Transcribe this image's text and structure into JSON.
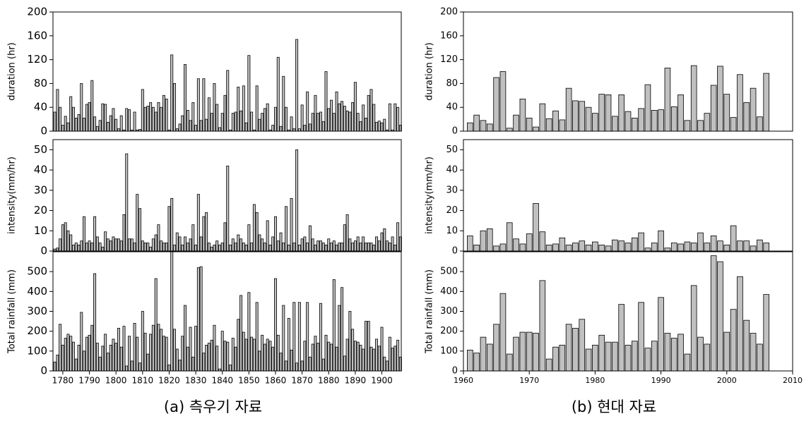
{
  "chart_data": [
    {
      "type": "bar",
      "ylabel": "duration (hr)",
      "color": "#c0c0c0",
      "x": [
        1777,
        1778,
        1779,
        1780,
        1781,
        1782,
        1783,
        1784,
        1785,
        1786,
        1787,
        1788,
        1789,
        1790,
        1791,
        1792,
        1793,
        1794,
        1795,
        1796,
        1797,
        1798,
        1799,
        1800,
        1801,
        1802,
        1803,
        1804,
        1805,
        1806,
        1807,
        1808,
        1809,
        1810,
        1811,
        1812,
        1813,
        1814,
        1815,
        1816,
        1817,
        1818,
        1819,
        1820,
        1821,
        1822,
        1823,
        1824,
        1825,
        1826,
        1827,
        1828,
        1829,
        1830,
        1831,
        1832,
        1833,
        1834,
        1835,
        1836,
        1837,
        1838,
        1839,
        1840,
        1841,
        1842,
        1843,
        1844,
        1845,
        1846,
        1847,
        1848,
        1849,
        1850,
        1851,
        1852,
        1853,
        1854,
        1855,
        1856,
        1857,
        1858,
        1859,
        1860,
        1861,
        1862,
        1863,
        1864,
        1865,
        1866,
        1867,
        1868,
        1869,
        1870,
        1871,
        1872,
        1873,
        1874,
        1875,
        1876,
        1877,
        1878,
        1879,
        1880,
        1881,
        1882,
        1883,
        1884,
        1885,
        1886,
        1887,
        1888,
        1889,
        1890,
        1891,
        1892,
        1893,
        1894,
        1895,
        1896,
        1897,
        1898,
        1899,
        1900,
        1901,
        1902,
        1903,
        1904,
        1905,
        1906,
        1907
      ],
      "values": [
        32,
        70,
        40,
        10,
        25,
        14,
        58,
        40,
        22,
        28,
        80,
        22,
        45,
        48,
        85,
        24,
        8,
        18,
        46,
        45,
        15,
        26,
        38,
        20,
        4,
        26,
        2,
        38,
        36,
        2,
        32,
        2,
        3,
        70,
        40,
        42,
        48,
        40,
        32,
        48,
        40,
        60,
        54,
        2,
        128,
        80,
        4,
        12,
        26,
        112,
        35,
        18,
        48,
        10,
        88,
        18,
        88,
        20,
        56,
        30,
        80,
        45,
        6,
        30,
        60,
        102,
        2,
        30,
        32,
        74,
        34,
        76,
        14,
        127,
        32,
        2,
        76,
        20,
        30,
        38,
        46,
        2,
        10,
        40,
        124,
        8,
        92,
        40,
        2,
        24,
        4,
        154,
        4,
        44,
        10,
        66,
        12,
        30,
        60,
        30,
        32,
        16,
        100,
        38,
        52,
        30,
        66,
        46,
        50,
        42,
        34,
        32,
        48,
        82,
        30,
        16,
        44,
        22,
        60,
        70,
        45,
        15,
        17,
        14,
        20,
        2,
        46,
        2,
        46,
        40,
        10
      ],
      "xlim": [
        1776.3,
        1907.3
      ],
      "ylim": [
        0,
        200
      ],
      "yticks": [
        0,
        40,
        80,
        120,
        160,
        200
      ]
    },
    {
      "type": "bar",
      "ylabel": "intensity(mm/hr)",
      "color": "#c0c0c0",
      "x": [
        1777,
        1778,
        1779,
        1780,
        1781,
        1782,
        1783,
        1784,
        1785,
        1786,
        1787,
        1788,
        1789,
        1790,
        1791,
        1792,
        1793,
        1794,
        1795,
        1796,
        1797,
        1798,
        1799,
        1800,
        1801,
        1802,
        1803,
        1804,
        1805,
        1806,
        1807,
        1808,
        1809,
        1810,
        1811,
        1812,
        1813,
        1814,
        1815,
        1816,
        1817,
        1818,
        1819,
        1820,
        1821,
        1822,
        1823,
        1824,
        1825,
        1826,
        1827,
        1828,
        1829,
        1830,
        1831,
        1832,
        1833,
        1834,
        1835,
        1836,
        1837,
        1838,
        1839,
        1840,
        1841,
        1842,
        1843,
        1844,
        1845,
        1846,
        1847,
        1848,
        1849,
        1850,
        1851,
        1852,
        1853,
        1854,
        1855,
        1856,
        1857,
        1858,
        1859,
        1860,
        1861,
        1862,
        1863,
        1864,
        1865,
        1866,
        1867,
        1868,
        1869,
        1870,
        1871,
        1872,
        1873,
        1874,
        1875,
        1876,
        1877,
        1878,
        1879,
        1880,
        1881,
        1882,
        1883,
        1884,
        1885,
        1886,
        1887,
        1888,
        1889,
        1890,
        1891,
        1892,
        1893,
        1894,
        1895,
        1896,
        1897,
        1898,
        1899,
        1900,
        1901,
        1902,
        1903,
        1904,
        1905,
        1906,
        1907
      ],
      "values": [
        1,
        1.5,
        6,
        13,
        14,
        10,
        8,
        3,
        4,
        3,
        5,
        17,
        4,
        5,
        4,
        17,
        7,
        4,
        2,
        9.5,
        6,
        5,
        7,
        6,
        6,
        5,
        18,
        48,
        6,
        6,
        4,
        28,
        21,
        5,
        4,
        4,
        2,
        6,
        8,
        13,
        5,
        4,
        4,
        22,
        26,
        3,
        9,
        7,
        3,
        7,
        4,
        6,
        13,
        3,
        28,
        7,
        17,
        19,
        4,
        2,
        3,
        5,
        3,
        4,
        14,
        42,
        3,
        6,
        4,
        8,
        6,
        4,
        3,
        13,
        4,
        23,
        19,
        8,
        6,
        4,
        15,
        3,
        7,
        17,
        5,
        9,
        4,
        22,
        3,
        26,
        4,
        50,
        3,
        6,
        7,
        4,
        12.5,
        6,
        3,
        5,
        5,
        4,
        3,
        6,
        4,
        5,
        3,
        4,
        4,
        13,
        18,
        6,
        4,
        5,
        7,
        4,
        7,
        4,
        4,
        4,
        3,
        7,
        5,
        9,
        11,
        5,
        4,
        7,
        3,
        14,
        7
      ],
      "xlim": [
        1776.3,
        1907.3
      ],
      "ylim": [
        0,
        55
      ],
      "yticks": [
        0,
        10,
        20,
        30,
        40,
        50
      ]
    },
    {
      "type": "bar",
      "ylabel": "Total rainfall (mm)",
      "color": "#c0c0c0",
      "caption": "(a) 측우기 자료",
      "x": [
        1777,
        1778,
        1779,
        1780,
        1781,
        1782,
        1783,
        1784,
        1785,
        1786,
        1787,
        1788,
        1789,
        1790,
        1791,
        1792,
        1793,
        1794,
        1795,
        1796,
        1797,
        1798,
        1799,
        1800,
        1801,
        1802,
        1803,
        1804,
        1805,
        1806,
        1807,
        1808,
        1809,
        1810,
        1811,
        1812,
        1813,
        1814,
        1815,
        1816,
        1817,
        1818,
        1819,
        1820,
        1821,
        1822,
        1823,
        1824,
        1825,
        1826,
        1827,
        1828,
        1829,
        1830,
        1831,
        1832,
        1833,
        1834,
        1835,
        1836,
        1837,
        1838,
        1839,
        1840,
        1841,
        1842,
        1843,
        1844,
        1845,
        1846,
        1847,
        1848,
        1849,
        1850,
        1851,
        1852,
        1853,
        1854,
        1855,
        1856,
        1857,
        1858,
        1859,
        1860,
        1861,
        1862,
        1863,
        1864,
        1865,
        1866,
        1867,
        1868,
        1869,
        1870,
        1871,
        1872,
        1873,
        1874,
        1875,
        1876,
        1877,
        1878,
        1879,
        1880,
        1881,
        1882,
        1883,
        1884,
        1885,
        1886,
        1887,
        1888,
        1889,
        1890,
        1891,
        1892,
        1893,
        1894,
        1895,
        1896,
        1897,
        1898,
        1899,
        1900,
        1901,
        1902,
        1903,
        1904,
        1905,
        1906,
        1907
      ],
      "values": [
        45,
        80,
        235,
        130,
        165,
        185,
        175,
        145,
        60,
        130,
        295,
        100,
        170,
        180,
        230,
        490,
        140,
        70,
        125,
        185,
        90,
        130,
        160,
        140,
        215,
        120,
        225,
        25,
        175,
        50,
        240,
        170,
        40,
        300,
        190,
        85,
        185,
        230,
        465,
        235,
        210,
        175,
        170,
        30,
        600,
        210,
        110,
        55,
        175,
        330,
        120,
        220,
        70,
        225,
        520,
        525,
        90,
        130,
        140,
        155,
        230,
        125,
        10,
        200,
        150,
        145,
        30,
        165,
        120,
        260,
        380,
        195,
        160,
        395,
        170,
        160,
        345,
        100,
        180,
        135,
        160,
        150,
        120,
        465,
        180,
        90,
        330,
        50,
        265,
        105,
        345,
        40,
        345,
        50,
        150,
        345,
        70,
        135,
        175,
        140,
        340,
        60,
        180,
        145,
        135,
        460,
        120,
        330,
        420,
        75,
        160,
        300,
        210,
        150,
        145,
        130,
        110,
        250,
        250,
        120,
        110,
        160,
        125,
        220,
        70,
        50,
        170,
        115,
        125,
        155,
        70
      ],
      "xlim": [
        1776.3,
        1907.3
      ],
      "xticks": [
        1780,
        1790,
        1800,
        1810,
        1820,
        1830,
        1840,
        1850,
        1860,
        1870,
        1880,
        1890,
        1900
      ],
      "ylim": [
        0,
        600
      ],
      "yticks": [
        0,
        100,
        200,
        300,
        400,
        500
      ]
    },
    {
      "type": "bar",
      "ylabel": "duration (hr)",
      "color": "#c0c0c0",
      "x": [
        1961,
        1962,
        1963,
        1964,
        1965,
        1966,
        1967,
        1968,
        1969,
        1970,
        1971,
        1972,
        1973,
        1974,
        1975,
        1976,
        1977,
        1978,
        1979,
        1980,
        1981,
        1982,
        1983,
        1984,
        1985,
        1986,
        1987,
        1988,
        1989,
        1990,
        1991,
        1992,
        1993,
        1994,
        1995,
        1996,
        1997,
        1998,
        1999,
        2000,
        2001,
        2002,
        2003,
        2004,
        2005,
        2006
      ],
      "values": [
        14,
        27,
        18,
        12,
        90,
        100,
        5,
        27,
        54,
        22,
        7,
        46,
        21,
        34,
        19,
        72,
        51,
        50,
        40,
        30,
        62,
        61,
        25,
        61,
        33,
        22,
        38,
        78,
        35,
        36,
        106,
        41,
        61,
        18,
        110,
        18,
        30,
        77,
        109,
        62,
        23,
        95,
        48,
        72,
        24,
        97
      ],
      "xlim": [
        1960,
        2010
      ],
      "ylim": [
        0,
        200
      ],
      "yticks": [
        0,
        40,
        80,
        120,
        160,
        200
      ]
    },
    {
      "type": "bar",
      "ylabel": "intensity(mm/hr)",
      "color": "#c0c0c0",
      "x": [
        1961,
        1962,
        1963,
        1964,
        1965,
        1966,
        1967,
        1968,
        1969,
        1970,
        1971,
        1972,
        1973,
        1974,
        1975,
        1976,
        1977,
        1978,
        1979,
        1980,
        1981,
        1982,
        1983,
        1984,
        1985,
        1986,
        1987,
        1988,
        1989,
        1990,
        1991,
        1992,
        1993,
        1994,
        1995,
        1996,
        1997,
        1998,
        1999,
        2000,
        2001,
        2002,
        2003,
        2004,
        2005,
        2006
      ],
      "values": [
        7.5,
        3,
        10,
        11,
        2.5,
        3.5,
        14,
        6,
        3.5,
        8.5,
        23.5,
        9.5,
        3,
        3.5,
        6.5,
        3,
        4,
        5,
        3,
        4.5,
        3,
        2.5,
        5.5,
        5,
        4,
        6.5,
        9,
        1.5,
        4,
        10,
        1.5,
        4,
        3.5,
        4.5,
        4,
        9,
        4,
        7.5,
        5,
        3,
        12.5,
        5,
        5,
        2.5,
        5.5,
        4
      ],
      "xlim": [
        1960,
        2010
      ],
      "ylim": [
        0,
        55
      ],
      "yticks": [
        0,
        10,
        20,
        30,
        40,
        50
      ]
    },
    {
      "type": "bar",
      "ylabel": "Total rainfall (mm)",
      "color": "#c0c0c0",
      "caption": "(b) 현대 자료",
      "x": [
        1961,
        1962,
        1963,
        1964,
        1965,
        1966,
        1967,
        1968,
        1969,
        1970,
        1971,
        1972,
        1973,
        1974,
        1975,
        1976,
        1977,
        1978,
        1979,
        1980,
        1981,
        1982,
        1983,
        1984,
        1985,
        1986,
        1987,
        1988,
        1989,
        1990,
        1991,
        1992,
        1993,
        1994,
        1995,
        1996,
        1997,
        1998,
        1999,
        2000,
        2001,
        2002,
        2003,
        2004,
        2005,
        2006
      ],
      "values": [
        105,
        90,
        170,
        135,
        235,
        390,
        85,
        170,
        195,
        195,
        190,
        455,
        60,
        120,
        130,
        235,
        215,
        260,
        110,
        130,
        180,
        145,
        145,
        335,
        130,
        150,
        345,
        115,
        150,
        370,
        190,
        165,
        185,
        85,
        430,
        170,
        135,
        580,
        550,
        195,
        310,
        475,
        255,
        190,
        135,
        385
      ],
      "xlim": [
        1960,
        2010
      ],
      "xticks": [
        1960,
        1970,
        1980,
        1990,
        2000,
        2010
      ],
      "ylim": [
        0,
        600
      ],
      "yticks": [
        0,
        100,
        200,
        300,
        400,
        500
      ]
    }
  ]
}
